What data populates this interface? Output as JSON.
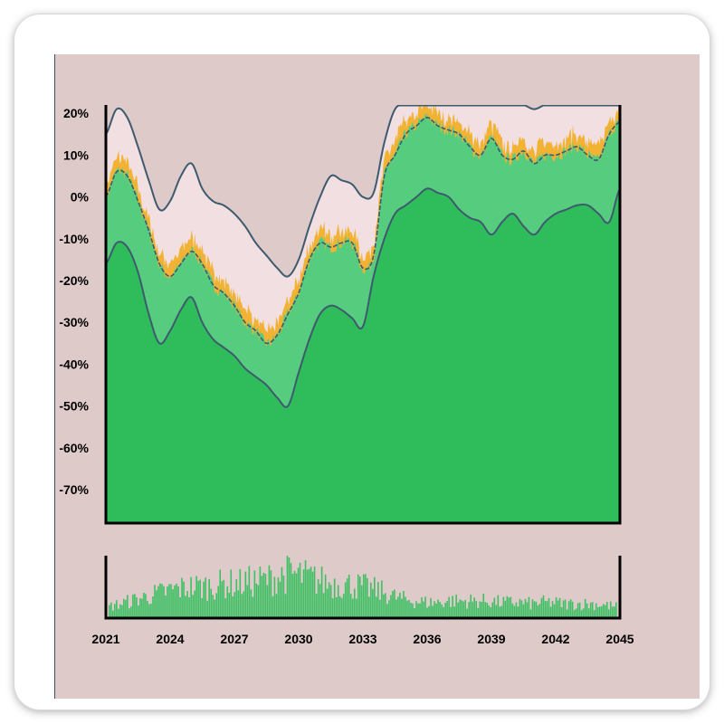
{
  "chart_data": {
    "type": "area",
    "x_ticks": [
      "2021",
      "2024",
      "2027",
      "2030",
      "2033",
      "2036",
      "2039",
      "2042",
      "2045"
    ],
    "y_ticks": [
      {
        "value": 20,
        "label": "20%"
      },
      {
        "value": 10,
        "label": "10%"
      },
      {
        "value": 0,
        "label": "0%"
      },
      {
        "value": -10,
        "label": "-10%"
      },
      {
        "value": -20,
        "label": "-20%"
      },
      {
        "value": -30,
        "label": "-30%"
      },
      {
        "value": -40,
        "label": "-40%"
      },
      {
        "value": -50,
        "label": "-50%"
      },
      {
        "value": -60,
        "label": "-60%"
      },
      {
        "value": -70,
        "label": "-70%"
      }
    ],
    "xlim": [
      2021,
      2045
    ],
    "ylim": [
      -78,
      22
    ],
    "x": [
      2021,
      2021.5,
      2022,
      2022.5,
      2023,
      2023.5,
      2024,
      2024.5,
      2025,
      2025.5,
      2026,
      2026.5,
      2027,
      2027.5,
      2028,
      2028.5,
      2029,
      2029.5,
      2030,
      2030.5,
      2031,
      2031.5,
      2032,
      2032.5,
      2033,
      2033.5,
      2034,
      2034.5,
      2035,
      2035.5,
      2036,
      2036.5,
      2037,
      2037.5,
      2038,
      2038.5,
      2039,
      2039.5,
      2040,
      2040.5,
      2041,
      2041.5,
      2042,
      2042.5,
      2043,
      2043.5,
      2044,
      2044.5,
      2045
    ],
    "series": [
      {
        "role": "upper_band",
        "values": [
          15,
          21,
          19,
          12,
          4,
          -3,
          -1,
          5,
          8,
          2,
          -1,
          -2,
          -4,
          -7,
          -11,
          -14,
          -17,
          -19,
          -15,
          -7,
          0,
          5,
          4,
          3,
          0,
          1,
          13,
          21,
          22,
          22,
          22,
          22,
          22,
          22,
          22,
          22,
          22,
          22,
          22,
          22,
          21,
          22,
          22,
          22,
          22,
          22,
          22,
          22,
          22
        ]
      },
      {
        "role": "mid_line",
        "values": [
          0,
          6,
          5,
          -1,
          -8,
          -16,
          -19,
          -16,
          -13,
          -16,
          -21,
          -23,
          -26,
          -30,
          -32,
          -35,
          -33,
          -28,
          -23,
          -15,
          -11,
          -12,
          -11,
          -11,
          -17,
          -14,
          5,
          10,
          15,
          17,
          19,
          17,
          16,
          15,
          12,
          10,
          14,
          10,
          9,
          11,
          8,
          10,
          10,
          11,
          12,
          10,
          9,
          15,
          18
        ]
      },
      {
        "role": "lower_band",
        "values": [
          -16,
          -11,
          -12,
          -18,
          -28,
          -35,
          -32,
          -27,
          -24,
          -30,
          -34,
          -36,
          -38,
          -41,
          -43,
          -45,
          -48,
          -50,
          -42,
          -34,
          -28,
          -26,
          -27,
          -29,
          -31,
          -19,
          -10,
          -4,
          -2,
          0,
          2,
          1,
          0,
          -3,
          -5,
          -6,
          -9,
          -6,
          -4,
          -7,
          -9,
          -6,
          -4,
          -3,
          -2,
          -2,
          -4,
          -6,
          2
        ]
      }
    ],
    "volume": {
      "type": "bar",
      "values": [
        8,
        10,
        12,
        14,
        16,
        18,
        20,
        21,
        22,
        22,
        23,
        24,
        24,
        25,
        26,
        27,
        29,
        31,
        30,
        28,
        26,
        24,
        24,
        23,
        22,
        20,
        18,
        15,
        13,
        12,
        11,
        11,
        12,
        12,
        12,
        12,
        12,
        11,
        11,
        11,
        10,
        11,
        11,
        10,
        10,
        10,
        10,
        9,
        8
      ]
    },
    "colors": {
      "panel_bg": "#dfcaca",
      "band_fill": "#f1dfe1",
      "mid_fill": "#56cd7e",
      "low_fill": "#2fbd5b",
      "line": "#3e5a6e",
      "spike": "#f2b233",
      "volume_bar": "#3cc062"
    }
  }
}
